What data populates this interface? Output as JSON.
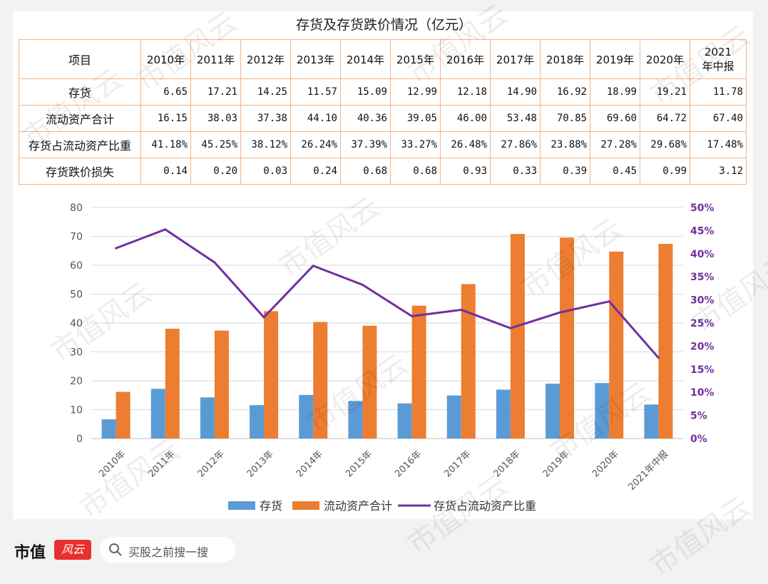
{
  "table": {
    "title": "存货及存货跌价情况（亿元）",
    "header_label": "项目",
    "years": [
      "2010年",
      "2011年",
      "2012年",
      "2013年",
      "2014年",
      "2015年",
      "2016年",
      "2017年",
      "2018年",
      "2019年",
      "2020年",
      "2021年中报"
    ],
    "rows": [
      {
        "label": "存货",
        "values": [
          "6.65",
          "17.21",
          "14.25",
          "11.57",
          "15.09",
          "12.99",
          "12.18",
          "14.90",
          "16.92",
          "18.99",
          "19.21",
          "11.78"
        ]
      },
      {
        "label": "流动资产合计",
        "values": [
          "16.15",
          "38.03",
          "37.38",
          "44.10",
          "40.36",
          "39.05",
          "46.00",
          "53.48",
          "70.85",
          "69.60",
          "64.72",
          "67.40"
        ]
      },
      {
        "label": "存货占流动资产比重",
        "values": [
          "41.18%",
          "45.25%",
          "38.12%",
          "26.24%",
          "37.39%",
          "33.27%",
          "26.48%",
          "27.86%",
          "23.88%",
          "27.28%",
          "29.68%",
          "17.48%"
        ]
      },
      {
        "label": "存货跌价损失",
        "values": [
          "0.14",
          "0.20",
          "0.03",
          "0.24",
          "0.68",
          "0.68",
          "0.93",
          "0.33",
          "0.39",
          "0.45",
          "0.99",
          "3.12"
        ]
      }
    ]
  },
  "chart_data": {
    "type": "bar",
    "categories": [
      "2010年",
      "2011年",
      "2012年",
      "2013年",
      "2014年",
      "2015年",
      "2016年",
      "2017年",
      "2018年",
      "2019年",
      "2020年",
      "2021年中报"
    ],
    "series": [
      {
        "name": "存货",
        "type": "bar",
        "axis": "left",
        "color": "#5b9bd5",
        "values": [
          6.65,
          17.21,
          14.25,
          11.57,
          15.09,
          12.99,
          12.18,
          14.9,
          16.92,
          18.99,
          19.21,
          11.78
        ]
      },
      {
        "name": "流动资产合计",
        "type": "bar",
        "axis": "left",
        "color": "#ed7d31",
        "values": [
          16.15,
          38.03,
          37.38,
          44.1,
          40.36,
          39.05,
          46.0,
          53.48,
          70.85,
          69.6,
          64.72,
          67.4
        ]
      },
      {
        "name": "存货占流动资产比重",
        "type": "line",
        "axis": "right",
        "color": "#7030a0",
        "values": [
          41.18,
          45.25,
          38.12,
          26.24,
          37.39,
          33.27,
          26.48,
          27.86,
          23.88,
          27.28,
          29.68,
          17.48
        ]
      }
    ],
    "y_left": {
      "min": 0,
      "max": 80,
      "ticks": [
        "0",
        "10",
        "20",
        "30",
        "40",
        "50",
        "60",
        "70",
        "80"
      ]
    },
    "y_right": {
      "min": 0,
      "max": 50,
      "ticks": [
        "0%",
        "5%",
        "10%",
        "15%",
        "20%",
        "25%",
        "30%",
        "35%",
        "40%",
        "45%",
        "50%"
      ],
      "color": "#7030a0"
    },
    "grid": true,
    "legend_position": "bottom"
  },
  "footer": {
    "brand": "市值",
    "brand_badge": "风云",
    "search_placeholder": "买股之前搜一搜"
  },
  "watermark": "市值风云"
}
